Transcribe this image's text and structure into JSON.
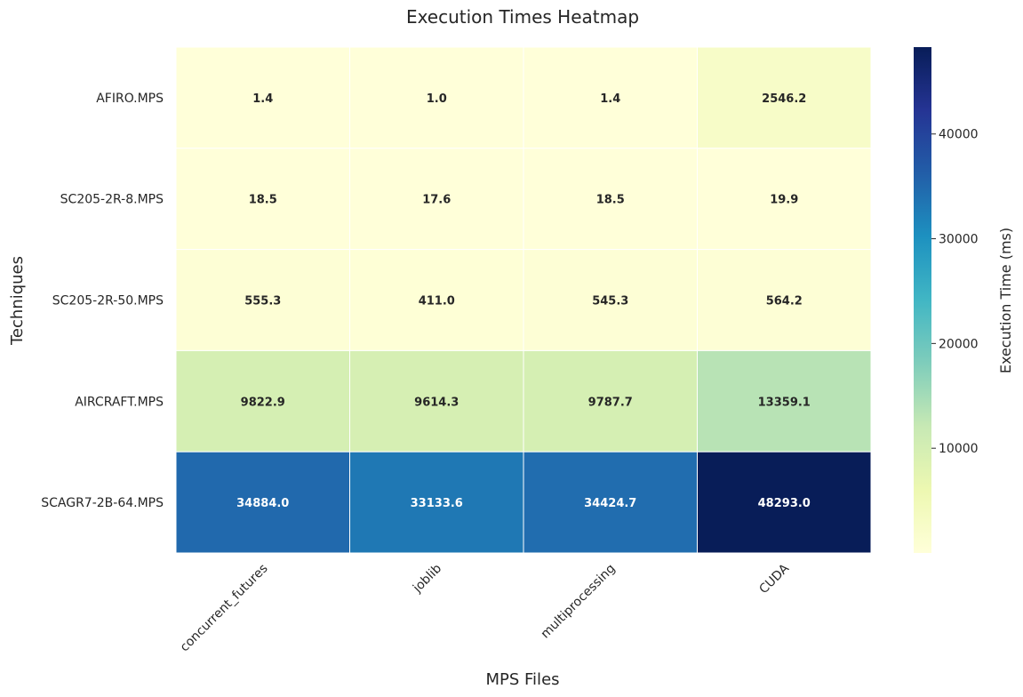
{
  "chart_data": {
    "type": "heatmap",
    "title": "Execution Times Heatmap",
    "xlabel": "MPS Files",
    "ylabel": "Techniques",
    "colorbar_label": "Execution Time (ms)",
    "colormap": "YlGnBu",
    "columns": [
      "concurrent_futures",
      "joblib",
      "multiprocessing",
      "CUDA"
    ],
    "rows": [
      "AFIRO.MPS",
      "SC205-2R-8.MPS",
      "SC205-2R-50.MPS",
      "AIRCRAFT.MPS",
      "SCAGR7-2B-64.MPS"
    ],
    "values": [
      [
        1.4,
        1.0,
        1.4,
        2546.2
      ],
      [
        18.5,
        17.6,
        18.5,
        19.9
      ],
      [
        555.3,
        411.0,
        545.3,
        564.2
      ],
      [
        9822.9,
        9614.3,
        9787.7,
        13359.1
      ],
      [
        34884.0,
        33133.6,
        34424.7,
        48293.0
      ]
    ],
    "value_labels": [
      [
        "1.4",
        "1.0",
        "1.4",
        "2546.2"
      ],
      [
        "18.5",
        "17.6",
        "18.5",
        "19.9"
      ],
      [
        "555.3",
        "411.0",
        "545.3",
        "564.2"
      ],
      [
        "9822.9",
        "9614.3",
        "9787.7",
        "13359.1"
      ],
      [
        "34884.0",
        "33133.6",
        "34424.7",
        "48293.0"
      ]
    ],
    "vmin": 1.0,
    "vmax": 48293.0,
    "colorbar_ticks": [
      10000,
      20000,
      30000,
      40000
    ],
    "colorbar_tick_labels": [
      "10000",
      "20000",
      "30000",
      "40000"
    ]
  }
}
